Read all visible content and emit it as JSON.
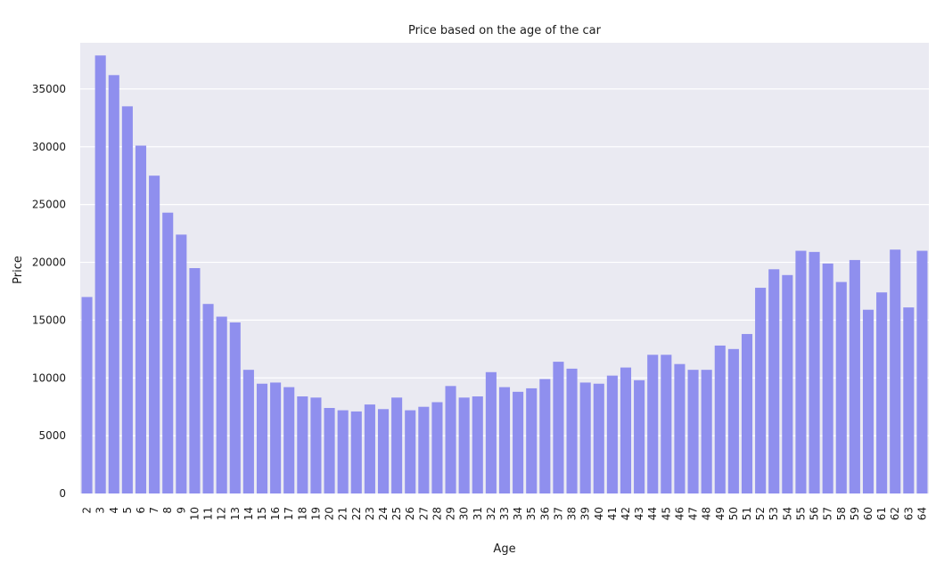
{
  "chart_data": {
    "type": "bar",
    "title": "Price based on the age of the car",
    "xlabel": "Age",
    "ylabel": "Price",
    "ylim": [
      0,
      39000
    ],
    "yticks": [
      0,
      5000,
      10000,
      15000,
      20000,
      25000,
      30000,
      35000
    ],
    "grid": true,
    "categories": [
      "2",
      "3",
      "4",
      "5",
      "6",
      "7",
      "8",
      "9",
      "10",
      "11",
      "12",
      "13",
      "14",
      "15",
      "16",
      "17",
      "18",
      "19",
      "20",
      "21",
      "22",
      "23",
      "24",
      "25",
      "26",
      "27",
      "28",
      "29",
      "30",
      "31",
      "32",
      "33",
      "34",
      "35",
      "36",
      "37",
      "38",
      "39",
      "40",
      "41",
      "42",
      "43",
      "44",
      "45",
      "46",
      "47",
      "48",
      "49",
      "50",
      "51",
      "52",
      "53",
      "54",
      "55",
      "56",
      "57",
      "58",
      "59",
      "60",
      "61",
      "62",
      "63",
      "64"
    ],
    "values": [
      17000,
      37900,
      36200,
      33500,
      30100,
      27500,
      24300,
      22400,
      19500,
      16400,
      15300,
      14800,
      10700,
      9500,
      9600,
      9200,
      8400,
      8300,
      7400,
      7200,
      7100,
      7700,
      7300,
      8300,
      7200,
      7500,
      7900,
      9300,
      8300,
      8400,
      10500,
      9200,
      8800,
      9100,
      9900,
      11400,
      10800,
      9600,
      9500,
      10200,
      10900,
      9800,
      12000,
      12000,
      11200,
      10700,
      10700,
      12800,
      12500,
      13800,
      17800,
      19400,
      18900,
      21000,
      20900,
      19900,
      18300,
      20200,
      15900,
      17400,
      21100,
      16100,
      21000
    ],
    "bar_color": "#8f8fee",
    "plot_background": "#eaeaf2",
    "grid_color": "#ffffff"
  }
}
